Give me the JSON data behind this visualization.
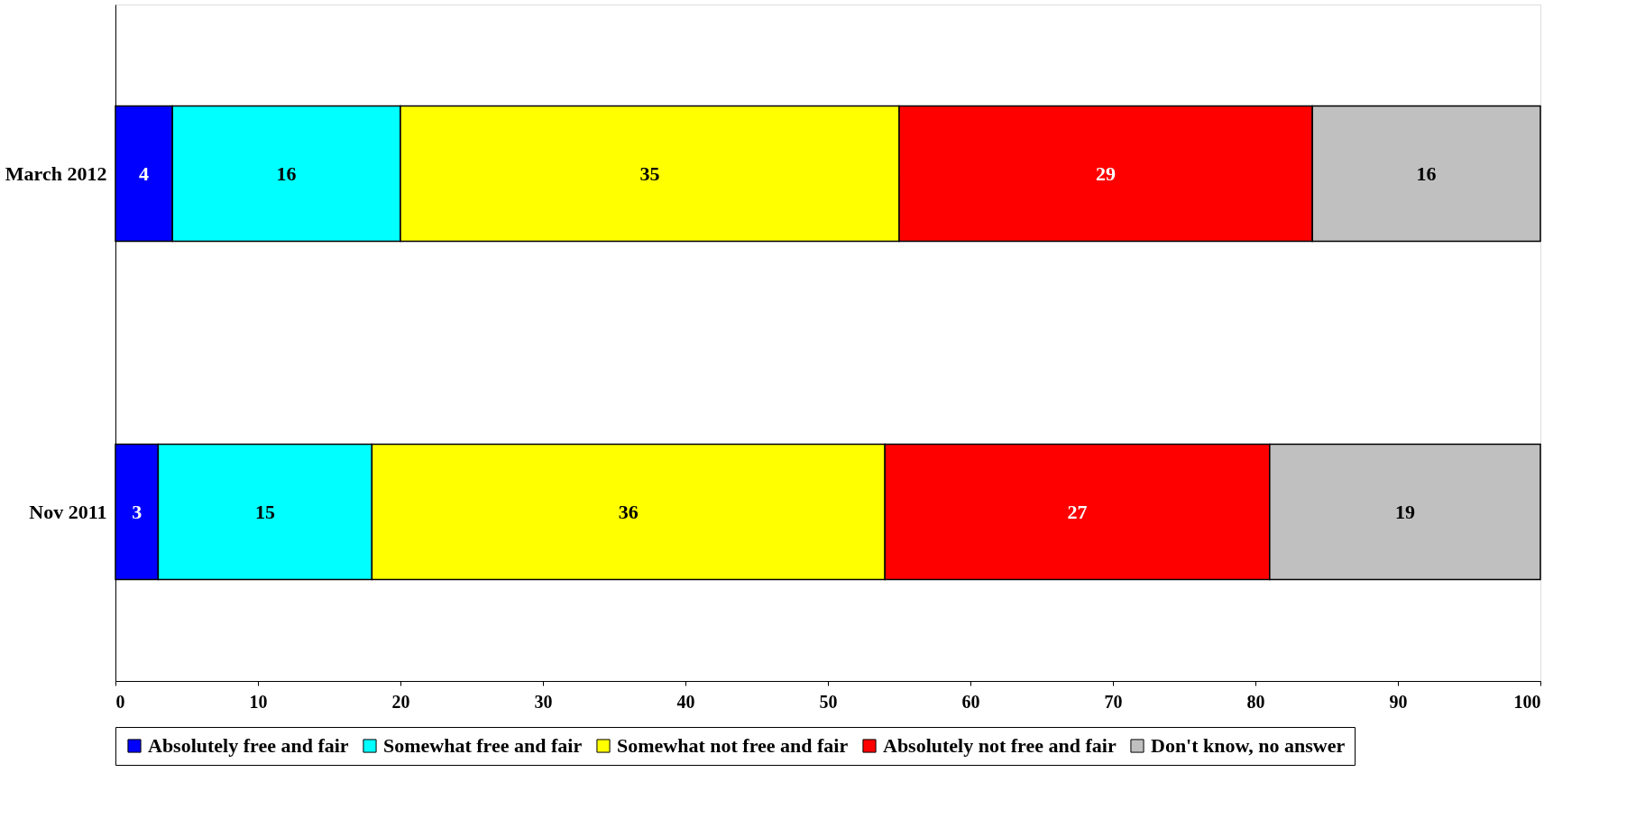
{
  "chart_data": {
    "type": "bar",
    "orientation": "horizontal",
    "stacked": true,
    "data_labels": true,
    "legend": "bottom",
    "grid": false,
    "categories": [
      "March 2012",
      "Nov 2011"
    ],
    "xlim": [
      0,
      100
    ],
    "xticks": [
      0,
      10,
      20,
      30,
      40,
      50,
      60,
      70,
      80,
      90,
      100
    ],
    "series": [
      {
        "name": "Absolutely free and fair",
        "color": "#0000ff",
        "values": [
          4,
          3
        ]
      },
      {
        "name": "Somewhat free and fair",
        "color": "#00ffff",
        "values": [
          16,
          15
        ]
      },
      {
        "name": "Somewhat not free and fair",
        "color": "#ffff00",
        "values": [
          35,
          36
        ]
      },
      {
        "name": "Absolutely not free and fair",
        "color": "#ff0000",
        "values": [
          29,
          27
        ]
      },
      {
        "name": "Don't know, no answer",
        "color": "#c0c0c0",
        "values": [
          16,
          19
        ]
      }
    ]
  }
}
